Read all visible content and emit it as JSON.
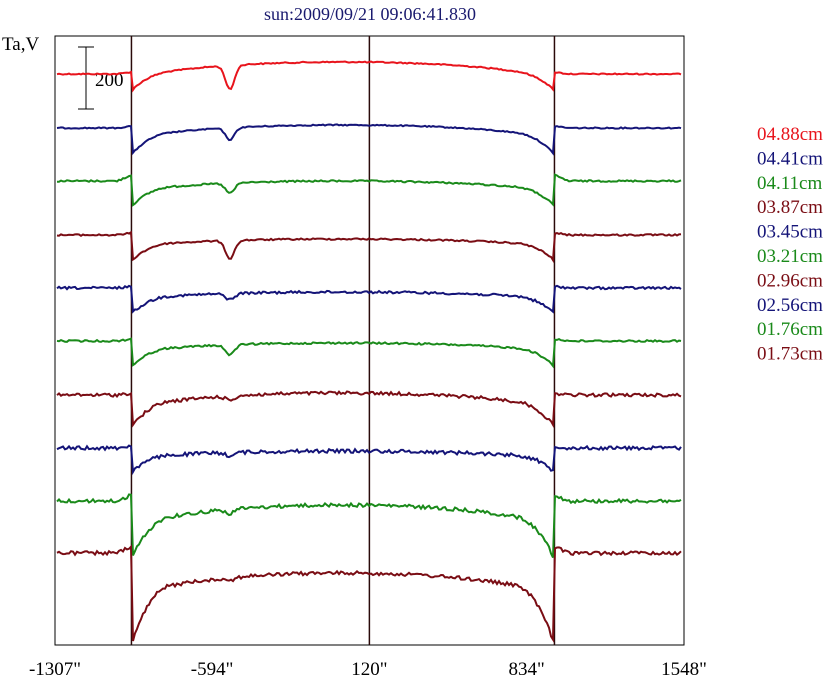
{
  "chart_data": {
    "type": "line",
    "title": "sun:2009/09/21 09:06:41.830",
    "ylabel": "Ta,V",
    "scale_bar_label": "200",
    "x_ticks": [
      "-1307\"",
      "-594\"",
      "120\"",
      "834\"",
      "1548\""
    ],
    "x_tick_values": [
      -1307,
      -594,
      120,
      834,
      1548
    ],
    "xlim": [
      -1307,
      1548
    ],
    "markers_x": [
      -960,
      120,
      960
    ],
    "grid": false,
    "legend_position": "right",
    "series": [
      {
        "name": "04.88cm",
        "color": "#e8141c"
      },
      {
        "name": "04.41cm",
        "color": "#141478"
      },
      {
        "name": "04.11cm",
        "color": "#1a8a1a"
      },
      {
        "name": "03.87cm",
        "color": "#7a0d14"
      },
      {
        "name": "03.45cm",
        "color": "#141478"
      },
      {
        "name": "03.21cm",
        "color": "#1a8a1a"
      },
      {
        "name": "02.96cm",
        "color": "#7a0d14"
      },
      {
        "name": "02.56cm",
        "color": "#141478"
      },
      {
        "name": "01.76cm",
        "color": "#1a8a1a"
      },
      {
        "name": "01.73cm",
        "color": "#7a0d14"
      }
    ]
  }
}
